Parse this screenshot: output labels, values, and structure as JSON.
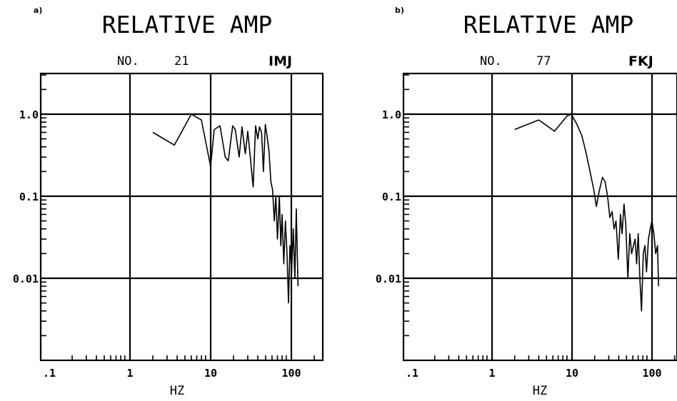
{
  "chart_data": [
    {
      "type": "line",
      "panel_label": "a)",
      "title": "RELATIVE AMP",
      "no_label": "NO.",
      "no_value": "21",
      "station": "IMJ",
      "xlabel": "HZ",
      "ylabel": "",
      "x_scale": "log",
      "y_scale": "log",
      "xlim": [
        0.1,
        400
      ],
      "ylim": [
        0.001,
        3
      ],
      "grid": true,
      "x_ticks": [
        ".1",
        "1",
        "10",
        "100"
      ],
      "y_ticks": [
        "1.0",
        "0.1",
        "0.01"
      ],
      "series": [
        {
          "x": [
            2.0,
            3.7,
            6.0,
            8.0,
            10.4,
            11.5,
            13.6,
            15.8,
            17.2,
            19.5,
            21.0,
            23.5,
            25.5,
            28.0,
            30.0,
            32.5,
            35.0,
            37.5,
            40.0,
            42.0,
            44.5,
            47.0,
            49.5,
            52.0,
            55.0,
            58.0,
            61.0,
            64.0,
            67.0,
            70.0,
            74.0,
            77.0,
            80.0,
            84.0,
            88.0,
            92.0,
            96.0,
            100.0,
            105.0,
            110.0,
            115.0,
            120.0,
            126.0
          ],
          "y": [
            0.6,
            0.42,
            1.0,
            0.85,
            0.23,
            0.65,
            0.72,
            0.3,
            0.27,
            0.72,
            0.65,
            0.3,
            0.7,
            0.33,
            0.62,
            0.28,
            0.13,
            0.72,
            0.5,
            0.7,
            0.6,
            0.2,
            0.75,
            0.55,
            0.35,
            0.15,
            0.12,
            0.05,
            0.1,
            0.03,
            0.1,
            0.025,
            0.06,
            0.015,
            0.05,
            0.02,
            0.005,
            0.025,
            0.012,
            0.04,
            0.01,
            0.07,
            0.008
          ]
        }
      ]
    },
    {
      "type": "line",
      "panel_label": "b)",
      "title": "RELATIVE AMP",
      "no_label": "NO.",
      "no_value": "77",
      "station": "FKJ",
      "xlabel": "HZ",
      "ylabel": "",
      "x_scale": "log",
      "y_scale": "log",
      "xlim": [
        0.1,
        200
      ],
      "ylim": [
        0.001,
        3
      ],
      "grid": true,
      "x_ticks": [
        ".1",
        "1",
        "10",
        "100"
      ],
      "y_ticks": [
        "1.0",
        "0.1",
        "0.01"
      ],
      "series": [
        {
          "x": [
            2.0,
            4.0,
            6.3,
            9.0,
            10.2,
            12.0,
            13.8,
            15.5,
            17.5,
            19.5,
            21.0,
            23.0,
            25.0,
            27.0,
            29.0,
            31.0,
            33.0,
            35.0,
            37.0,
            39.5,
            42.0,
            44.0,
            46.5,
            49.0,
            52.0,
            55.0,
            58.0,
            61.0,
            64.0,
            67.0,
            70.0,
            73.5,
            77.0,
            81.0,
            85.0,
            89.0,
            94.0,
            99.0,
            104.0,
            110.0,
            116.0,
            122.0,
            126.0
          ],
          "y": [
            0.65,
            0.85,
            0.62,
            0.95,
            1.0,
            0.75,
            0.55,
            0.35,
            0.2,
            0.12,
            0.075,
            0.12,
            0.17,
            0.15,
            0.1,
            0.055,
            0.065,
            0.04,
            0.05,
            0.017,
            0.06,
            0.035,
            0.08,
            0.045,
            0.01,
            0.035,
            0.02,
            0.025,
            0.03,
            0.015,
            0.035,
            0.01,
            0.004,
            0.02,
            0.025,
            0.012,
            0.03,
            0.04,
            0.05,
            0.035,
            0.02,
            0.025,
            0.008
          ]
        }
      ]
    }
  ]
}
